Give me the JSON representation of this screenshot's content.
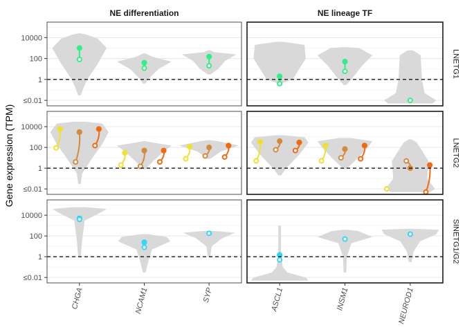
{
  "chart_data": {
    "type": "violin",
    "ylabel": "Gene expression (TPM)",
    "yscale": "log10",
    "ylim": [
      0.003,
      300000
    ],
    "yticks": [
      {
        "value": 0.01,
        "label": "≤0.01"
      },
      {
        "value": 1,
        "label": "1"
      },
      {
        "value": 100,
        "label": "100"
      },
      {
        "value": 10000,
        "label": "10000"
      }
    ],
    "reference_line": 1,
    "grid": true,
    "columns": [
      {
        "title": "NE differentiation",
        "genes": [
          "CHGA",
          "NCAM1",
          "SYP"
        ]
      },
      {
        "title": "NE lineage TF",
        "genes": [
          "ASCL1",
          "INSM1",
          "NEUROD1"
        ]
      }
    ],
    "rows": [
      "LNETG1",
      "LNETG2",
      "SINETG1/G2"
    ],
    "colors": {
      "violin": "#d9d9d9",
      "LNETG1": "#33ee88",
      "LNETG2_palette": [
        "#f0e030",
        "#e0a838",
        "#d48a3a",
        "#f06a10"
      ],
      "SINETG1/G2": "#33d6f5"
    },
    "panels": [
      {
        "row": "LNETG1",
        "col": "NE differentiation",
        "series": [
          {
            "gene": "CHGA",
            "pairs": [
              {
                "filled": 1000,
                "open": 80
              }
            ]
          },
          {
            "gene": "NCAM1",
            "pairs": [
              {
                "filled": 40,
                "open": 12
              }
            ]
          },
          {
            "gene": "SYP",
            "pairs": [
              {
                "filled": 150,
                "open": 20
              }
            ]
          }
        ]
      },
      {
        "row": "LNETG1",
        "col": "NE lineage TF",
        "series": [
          {
            "gene": "ASCL1",
            "pairs": [
              {
                "filled": 2,
                "open": 0.4
              }
            ]
          },
          {
            "gene": "INSM1",
            "pairs": [
              {
                "filled": 50,
                "open": 6
              }
            ]
          },
          {
            "gene": "NEUROD1",
            "pairs": [
              {
                "open": 0.01
              }
            ]
          }
        ]
      },
      {
        "row": "LNETG2",
        "col": "NE differentiation",
        "series": [
          {
            "gene": "CHGA",
            "pairs": [
              {
                "filled": 6000,
                "open": 90
              },
              {
                "filled": 3000,
                "open": 4
              },
              {
                "filled": 6000,
                "open": 150
              }
            ]
          },
          {
            "gene": "NCAM1",
            "pairs": [
              {
                "filled": 30,
                "open": 2
              },
              {
                "filled": 50,
                "open": 1.5
              },
              {
                "filled": 50,
                "open": 4
              }
            ]
          },
          {
            "gene": "SYP",
            "pairs": [
              {
                "filled": 120,
                "open": 8
              },
              {
                "filled": 100,
                "open": 15
              },
              {
                "filled": 150,
                "open": 12
              }
            ]
          }
        ]
      },
      {
        "row": "LNETG2",
        "col": "NE lineage TF",
        "series": [
          {
            "gene": "ASCL1",
            "pairs": [
              {
                "filled": 350,
                "open": 5
              },
              {
                "filled": 400,
                "open": 60
              },
              {
                "filled": 300,
                "open": 50
              }
            ]
          },
          {
            "gene": "INSM1",
            "pairs": [
              {
                "filled": 150,
                "open": 5
              },
              {
                "filled": 70,
                "open": 10
              },
              {
                "filled": 150,
                "open": 8
              }
            ]
          },
          {
            "gene": "NEUROD1",
            "pairs": [
              {
                "open": 0.01
              },
              {
                "filled": 1,
                "open": 5
              },
              {
                "filled": 2,
                "open": 0.005
              }
            ]
          }
        ]
      },
      {
        "row": "SINETG1/G2",
        "col": "NE differentiation",
        "series": [
          {
            "gene": "CHGA",
            "pairs": [
              {
                "filled": 5000,
                "open": 4000
              }
            ]
          },
          {
            "gene": "NCAM1",
            "pairs": [
              {
                "filled": 25,
                "open": 8
              }
            ]
          },
          {
            "gene": "SYP",
            "pairs": [
              {
                "open": 180
              }
            ]
          }
        ]
      },
      {
        "row": "SINETG1/G2",
        "col": "NE lineage TF",
        "series": [
          {
            "gene": "ASCL1",
            "pairs": [
              {
                "filled": 1.5,
                "open": 0.5
              }
            ]
          },
          {
            "gene": "INSM1",
            "pairs": [
              {
                "open": 50
              }
            ]
          },
          {
            "gene": "NEUROD1",
            "pairs": [
              {
                "open": 150
              }
            ]
          }
        ]
      }
    ]
  }
}
